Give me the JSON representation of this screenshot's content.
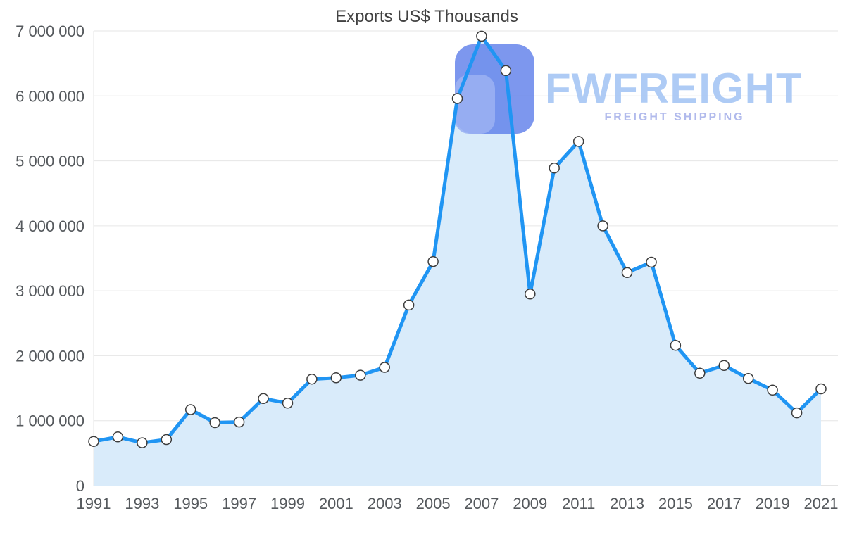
{
  "title": "Exports US$ Thousands",
  "watermark": {
    "brand": "FWFREIGHT",
    "tagline": "FREIGHT SHIPPING",
    "colors": {
      "logo": "#5678E9",
      "logo_accent": "#93ABF2",
      "brand": "#A6C6F4",
      "tagline": "#A9B3EA"
    }
  },
  "chart_data": {
    "type": "area",
    "title": "Exports US$ Thousands",
    "x": [
      1991,
      1992,
      1993,
      1994,
      1995,
      1996,
      1997,
      1998,
      1999,
      2000,
      2001,
      2002,
      2003,
      2004,
      2005,
      2006,
      2007,
      2008,
      2009,
      2010,
      2011,
      2012,
      2013,
      2014,
      2015,
      2016,
      2017,
      2018,
      2019,
      2020,
      2021
    ],
    "values": [
      680000,
      750000,
      660000,
      710000,
      1170000,
      970000,
      980000,
      1340000,
      1270000,
      1640000,
      1660000,
      1700000,
      1820000,
      2780000,
      3450000,
      5960000,
      6920000,
      6390000,
      2950000,
      4890000,
      5300000,
      4000000,
      3280000,
      3440000,
      2160000,
      1730000,
      1850000,
      1650000,
      1470000,
      1120000,
      1490000
    ],
    "ylim": [
      0,
      7000000
    ],
    "ytick_interval": 1000000,
    "ytick_labels": [
      "0",
      "1 000 000",
      "2 000 000",
      "3 000 000",
      "4 000 000",
      "5 000 000",
      "6 000 000",
      "7 000 000"
    ],
    "xtick_labels": [
      "1991",
      "1993",
      "1995",
      "1997",
      "1999",
      "2001",
      "2003",
      "2005",
      "2007",
      "2009",
      "2011",
      "2013",
      "2015",
      "2017",
      "2019",
      "2021"
    ],
    "grid": "horizontal",
    "legend": "none",
    "colors": {
      "line": "#2095F3",
      "fill": "#D9EBFA",
      "marker_fill": "#FFFFFF",
      "marker_stroke": "#3D3D3D",
      "grid": "#E6E6E6",
      "axis": "#C8C8C8",
      "tick_text": "#55595D",
      "title_text": "#424242"
    }
  }
}
